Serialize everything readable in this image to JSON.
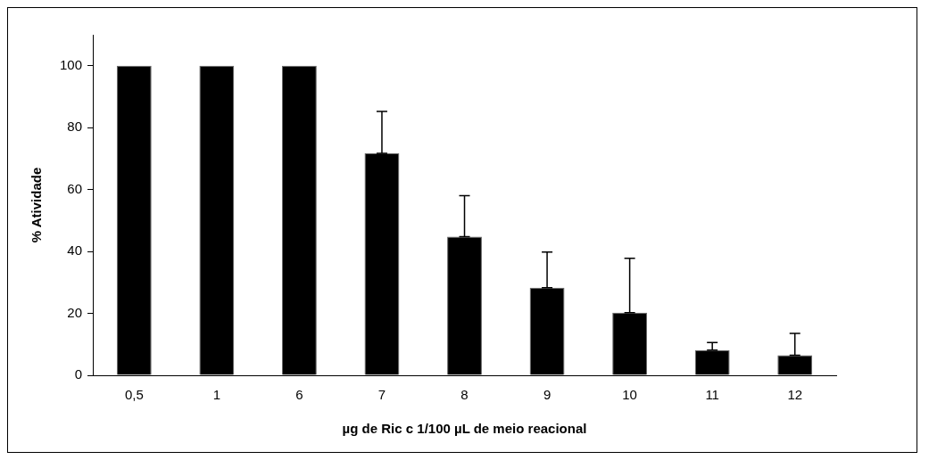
{
  "chart_data": {
    "type": "bar",
    "xlabel": "µg de Ric c 1/100 µL de meio reacional",
    "ylabel": "% Atividade",
    "categories": [
      "0,5",
      "1",
      "6",
      "7",
      "8",
      "9",
      "10",
      "11",
      "12"
    ],
    "values": [
      100,
      100,
      100,
      71.7,
      44.8,
      28.3,
      20.2,
      8.1,
      6.5
    ],
    "errors": [
      null,
      null,
      null,
      [
        71.7,
        85.2
      ],
      [
        44.8,
        58
      ],
      [
        28.3,
        39.8
      ],
      [
        20.2,
        37.8
      ],
      [
        8.1,
        10.6
      ],
      [
        6.5,
        13.5
      ]
    ],
    "color": "#000000",
    "ylim": [
      0,
      110
    ],
    "yticks": [
      0,
      20,
      40,
      60,
      80,
      100
    ],
    "grid": false,
    "legend": false
  }
}
